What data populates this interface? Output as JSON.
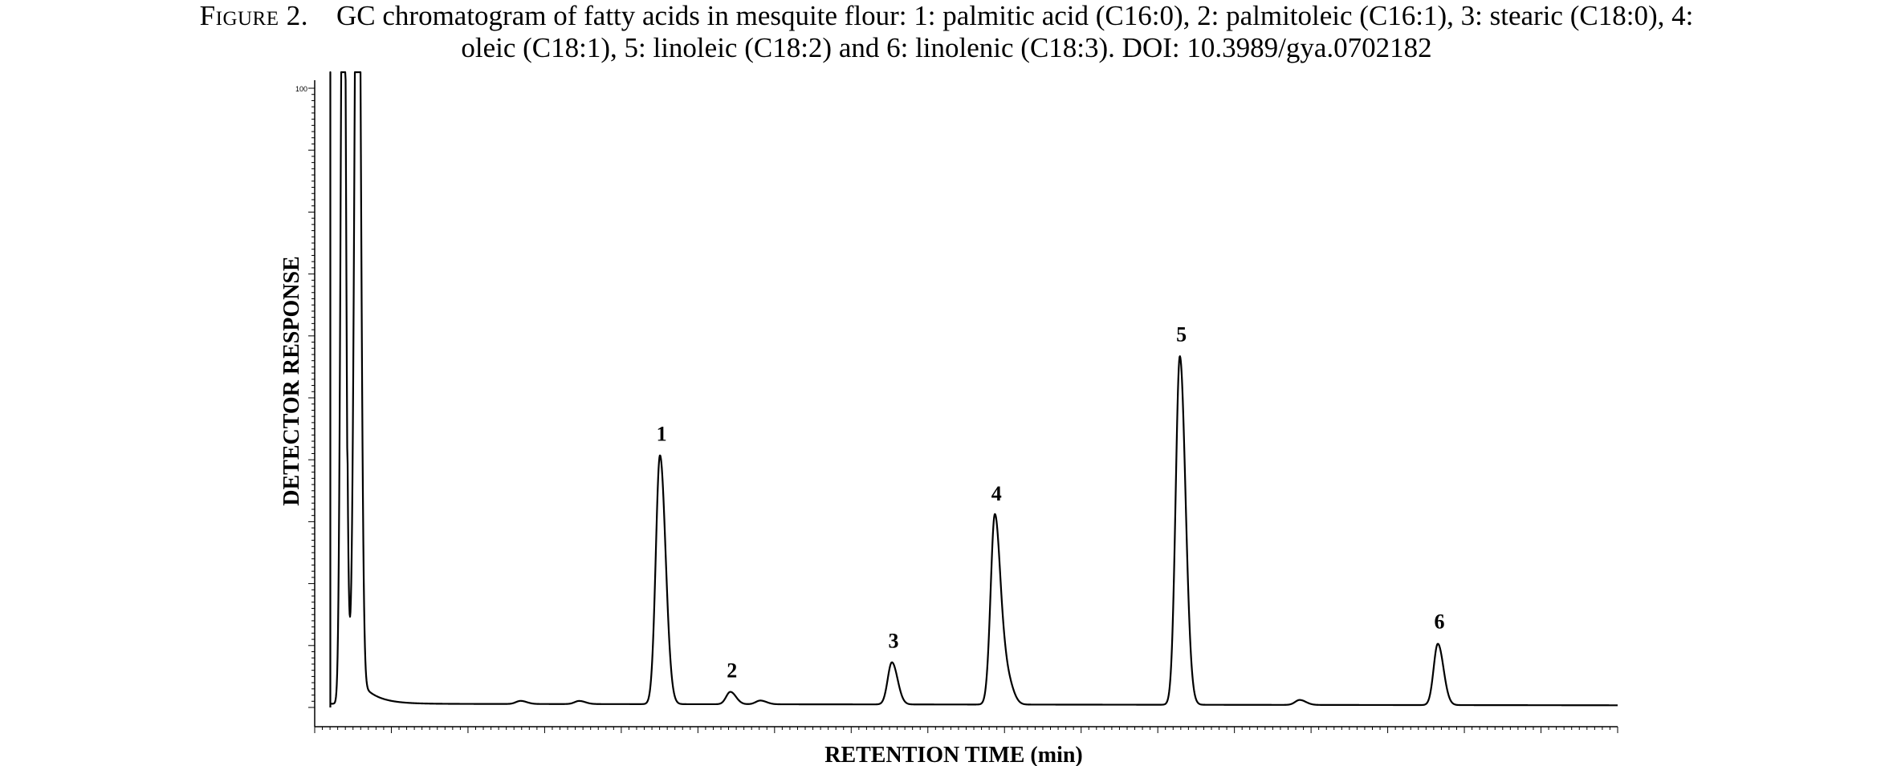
{
  "caption": {
    "figure_label": "Figure 2.",
    "line1": "GC chromatogram of fatty acids in mesquite flour: 1: palmitic acid (C16:0), 2: palmitoleic (C16:1), 3: stearic (C18:0), 4:",
    "line2": "oleic (C18:1), 5: linoleic (C18:2) and 6: linolenic (C18:3).  DOI: 10.3989/gya.0702182"
  },
  "chart_data": {
    "type": "line",
    "title": "",
    "xlabel": "RETENTION TIME (min)",
    "ylabel": "DETECTOR RESPONSE",
    "ylim": [
      0,
      100
    ],
    "yticks": [
      "100"
    ],
    "grid": false,
    "baseline": 0.6,
    "solvent_front": [
      {
        "x": 0.022,
        "width": 0.0018,
        "height": 160
      },
      {
        "x": 0.033,
        "width": 0.0022,
        "height": 160
      }
    ],
    "peaks": [
      {
        "label": "1",
        "name": "palmitic acid (C16:0)",
        "x": 0.265,
        "height": 40.2
      },
      {
        "label": "2",
        "name": "palmitoleic (C16:1)",
        "x": 0.319,
        "height": 2.0
      },
      {
        "label": "3",
        "name": "stearic (C18:0)",
        "x": 0.443,
        "height": 6.8
      },
      {
        "label": "4",
        "name": "oleic (C18:1)",
        "x": 0.522,
        "height": 30.6
      },
      {
        "label": "5",
        "name": "linoleic (C18:2)",
        "x": 0.664,
        "height": 56.3
      },
      {
        "label": "6",
        "name": "linolenic (C18:3)",
        "x": 0.862,
        "height": 9.9
      }
    ],
    "minor_peaks": [
      {
        "x": 0.158,
        "height": 0.5
      },
      {
        "x": 0.203,
        "height": 0.5
      },
      {
        "x": 0.342,
        "height": 0.6
      },
      {
        "x": 0.531,
        "height": 4.3
      },
      {
        "x": 0.756,
        "height": 0.8
      }
    ]
  }
}
